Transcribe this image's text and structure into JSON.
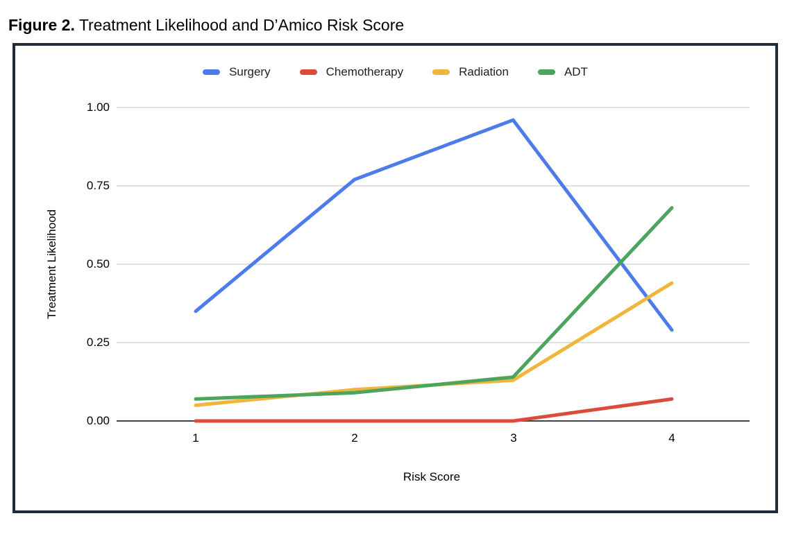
{
  "title": {
    "prefix": "Figure 2.",
    "rest": "Treatment Likelihood and D’Amico Risk Score"
  },
  "chart_data": {
    "type": "line",
    "x": [
      1,
      2,
      3,
      4
    ],
    "xlabel": "Risk Score",
    "ylabel": "Treatment Likelihood",
    "ylim": [
      0,
      1
    ],
    "xticks": [
      "1",
      "2",
      "3",
      "4"
    ],
    "yticks": [
      "1.00",
      "0.75",
      "0.50",
      "0.25",
      "0.00"
    ],
    "grid": true,
    "legend_position": "top",
    "series": [
      {
        "name": "Surgery",
        "color": "#4c7cea",
        "values": [
          0.35,
          0.77,
          0.96,
          0.29
        ]
      },
      {
        "name": "Chemotherapy",
        "color": "#db4a3b",
        "values": [
          0.0,
          0.0,
          0.0,
          0.07
        ]
      },
      {
        "name": "Radiation",
        "color": "#f0b53b",
        "values": [
          0.05,
          0.1,
          0.13,
          0.44
        ]
      },
      {
        "name": "ADT",
        "color": "#4ca45d",
        "values": [
          0.07,
          0.09,
          0.14,
          0.68
        ]
      }
    ]
  },
  "colors": {
    "grid": "#e0e0e0",
    "axis": "#424242",
    "border": "#1d2b3a",
    "text": "#000000",
    "legend_text": "#1f1f1f"
  }
}
